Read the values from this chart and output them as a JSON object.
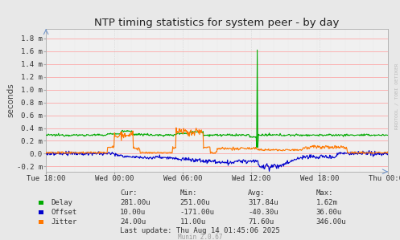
{
  "title": "NTP timing statistics for system peer - by day",
  "ylabel": "seconds",
  "plot_bg_color": "#F0F0F0",
  "fig_bg_color": "#E8E8E8",
  "grid_h_color": "#FF9999",
  "grid_v_color": "#CCCCCC",
  "ylim_min": -0.00028,
  "ylim_max": 0.00195,
  "yticks": [
    -0.0002,
    0.0,
    0.0002,
    0.0004,
    0.0006,
    0.0008,
    0.001,
    0.0012,
    0.0014,
    0.0016,
    0.0018
  ],
  "ytick_labels": [
    "-0.2 m",
    "0.0",
    "0.2 m",
    "0.4 m",
    "0.6 m",
    "0.8 m",
    "1.0 m",
    "1.2 m",
    "1.4 m",
    "1.6 m",
    "1.8 m"
  ],
  "xtick_labels": [
    "Tue 18:00",
    "Wed 00:00",
    "Wed 06:00",
    "Wed 12:00",
    "Wed 18:00",
    "Thu 00:00"
  ],
  "delay_color": "#00AA00",
  "offset_color": "#0000CC",
  "jitter_color": "#FF7700",
  "watermark_color": "#BBBBBB",
  "stats_headers": [
    "Cur:",
    "Min:",
    "Avg:",
    "Max:"
  ],
  "stats_rows": [
    {
      "name": "Delay",
      "color": "#00AA00",
      "values": [
        "281.00u",
        "251.00u",
        "317.84u",
        "1.62m"
      ]
    },
    {
      "name": "Offset",
      "color": "#0000CC",
      "values": [
        "10.00u",
        "-171.00u",
        "-40.30u",
        "36.00u"
      ]
    },
    {
      "name": "Jitter",
      "color": "#FF7700",
      "values": [
        "24.00u",
        "11.00u",
        "71.60u",
        "346.00u"
      ]
    }
  ],
  "last_update": "Last update: Thu Aug 14 01:45:06 2025",
  "munin_version": "Munin 2.0.67",
  "rrdtool_label": "RRDTOOL / TOBI OETIKER"
}
